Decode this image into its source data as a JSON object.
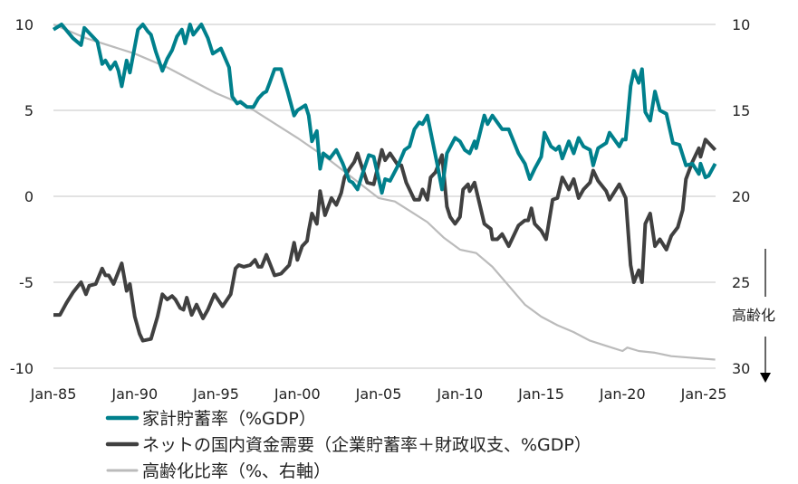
{
  "chart_data": {
    "type": "line",
    "title": "",
    "x_ticks": [
      "Jan-85",
      "Jan-90",
      "Jan-95",
      "Jan-00",
      "Jan-05",
      "Jan-10",
      "Jan-15",
      "Jan-20",
      "Jan-25"
    ],
    "x_range": [
      1985,
      2025.7
    ],
    "y_left": {
      "ticks": [
        "10",
        "5",
        "0",
        "-5",
        "-10"
      ],
      "range": [
        -10,
        10
      ],
      "negative_tick_color": "#FF0000"
    },
    "y_right": {
      "ticks": [
        "10",
        "15",
        "20",
        "25",
        "30"
      ],
      "range": [
        10,
        30
      ],
      "inverted": true,
      "annotation": "高齢化",
      "annotation_arrow": "down"
    },
    "grid": "horizontal",
    "legend_placement": "bottom",
    "series": [
      {
        "name": "家計貯蓄率（%GDP）",
        "axis": "left",
        "color": "#00808C",
        "points": [
          [
            1985.0,
            9.7
          ],
          [
            1985.5,
            10.0
          ],
          [
            1986.2,
            9.2
          ],
          [
            1986.7,
            8.8
          ],
          [
            1986.9,
            9.8
          ],
          [
            1987.7,
            9.0
          ],
          [
            1988.0,
            7.7
          ],
          [
            1988.2,
            7.9
          ],
          [
            1988.5,
            7.4
          ],
          [
            1988.8,
            7.8
          ],
          [
            1989.0,
            7.3
          ],
          [
            1989.2,
            6.4
          ],
          [
            1989.5,
            7.9
          ],
          [
            1989.7,
            7.2
          ],
          [
            1990.2,
            9.7
          ],
          [
            1990.5,
            10.0
          ],
          [
            1990.8,
            9.6
          ],
          [
            1991.0,
            9.4
          ],
          [
            1991.3,
            8.4
          ],
          [
            1991.7,
            7.3
          ],
          [
            1992.0,
            8.0
          ],
          [
            1992.3,
            8.5
          ],
          [
            1992.6,
            9.3
          ],
          [
            1992.9,
            9.7
          ],
          [
            1993.1,
            8.9
          ],
          [
            1993.4,
            10.0
          ],
          [
            1993.6,
            9.4
          ],
          [
            1994.1,
            10.0
          ],
          [
            1994.5,
            9.2
          ],
          [
            1994.8,
            8.3
          ],
          [
            1995.3,
            8.6
          ],
          [
            1995.8,
            7.5
          ],
          [
            1996.0,
            5.8
          ],
          [
            1996.3,
            5.4
          ],
          [
            1996.5,
            5.5
          ],
          [
            1996.9,
            5.2
          ],
          [
            1997.3,
            5.2
          ],
          [
            1997.6,
            5.7
          ],
          [
            1997.9,
            6.0
          ],
          [
            1998.1,
            6.1
          ],
          [
            1998.3,
            6.6
          ],
          [
            1998.6,
            7.4
          ],
          [
            1999.0,
            7.4
          ],
          [
            1999.4,
            6.1
          ],
          [
            1999.8,
            4.7
          ],
          [
            2000.0,
            5.0
          ],
          [
            2000.5,
            5.3
          ],
          [
            2000.7,
            4.7
          ],
          [
            2000.9,
            3.2
          ],
          [
            2001.2,
            3.8
          ],
          [
            2001.4,
            1.6
          ],
          [
            2001.6,
            2.5
          ],
          [
            2002.0,
            2.2
          ],
          [
            2002.4,
            2.7
          ],
          [
            2002.8,
            1.9
          ],
          [
            2003.2,
            0.9
          ],
          [
            2003.4,
            0.8
          ],
          [
            2003.7,
            0.4
          ],
          [
            2004.0,
            1.3
          ],
          [
            2004.4,
            2.4
          ],
          [
            2004.7,
            2.3
          ],
          [
            2005.2,
            0.2
          ],
          [
            2005.4,
            1.0
          ],
          [
            2005.7,
            0.9
          ],
          [
            2006.2,
            1.8
          ],
          [
            2006.6,
            2.7
          ],
          [
            2006.9,
            2.9
          ],
          [
            2007.2,
            3.9
          ],
          [
            2007.5,
            4.3
          ],
          [
            2007.7,
            4.2
          ],
          [
            2008.0,
            4.7
          ],
          [
            2008.3,
            3.3
          ],
          [
            2008.6,
            1.9
          ],
          [
            2008.9,
            0.4
          ],
          [
            2009.2,
            2.5
          ],
          [
            2009.7,
            3.4
          ],
          [
            2010.0,
            3.2
          ],
          [
            2010.3,
            2.7
          ],
          [
            2010.6,
            2.5
          ],
          [
            2010.9,
            3.2
          ],
          [
            2011.0,
            2.8
          ],
          [
            2011.5,
            4.7
          ],
          [
            2011.7,
            4.2
          ],
          [
            2012.0,
            4.7
          ],
          [
            2012.3,
            4.3
          ],
          [
            2012.6,
            3.9
          ],
          [
            2013.0,
            3.9
          ],
          [
            2013.6,
            2.5
          ],
          [
            2014.0,
            1.9
          ],
          [
            2014.3,
            1.0
          ],
          [
            2014.6,
            1.6
          ],
          [
            2015.0,
            2.3
          ],
          [
            2015.2,
            3.7
          ],
          [
            2015.6,
            2.9
          ],
          [
            2015.9,
            2.7
          ],
          [
            2016.1,
            2.9
          ],
          [
            2016.3,
            2.2
          ],
          [
            2016.7,
            3.2
          ],
          [
            2017.0,
            2.5
          ],
          [
            2017.3,
            3.4
          ],
          [
            2017.6,
            2.9
          ],
          [
            2018.0,
            2.7
          ],
          [
            2018.2,
            1.8
          ],
          [
            2018.5,
            2.8
          ],
          [
            2019.0,
            3.1
          ],
          [
            2019.2,
            3.7
          ],
          [
            2019.8,
            2.9
          ],
          [
            2020.0,
            3.3
          ],
          [
            2020.2,
            3.3
          ],
          [
            2020.5,
            6.4
          ],
          [
            2020.7,
            7.3
          ],
          [
            2021.0,
            6.6
          ],
          [
            2021.2,
            7.4
          ],
          [
            2021.4,
            4.9
          ],
          [
            2021.7,
            4.4
          ],
          [
            2022.0,
            6.1
          ],
          [
            2022.3,
            5.0
          ],
          [
            2022.7,
            4.8
          ],
          [
            2023.1,
            3.1
          ],
          [
            2023.5,
            3.0
          ],
          [
            2023.9,
            1.8
          ],
          [
            2024.3,
            1.9
          ],
          [
            2024.7,
            1.3
          ],
          [
            2024.8,
            1.9
          ],
          [
            2025.1,
            1.1
          ],
          [
            2025.3,
            1.2
          ],
          [
            2025.7,
            1.9
          ]
        ]
      },
      {
        "name": "ネットの国内資金需要（企業貯蓄率＋財政収支、%GDP）",
        "axis": "left",
        "color": "#404040",
        "points": [
          [
            1985.0,
            -6.9
          ],
          [
            1985.4,
            -6.9
          ],
          [
            1985.8,
            -6.2
          ],
          [
            1986.2,
            -5.6
          ],
          [
            1986.7,
            -5.0
          ],
          [
            1987.0,
            -5.7
          ],
          [
            1987.2,
            -5.2
          ],
          [
            1987.6,
            -5.1
          ],
          [
            1988.0,
            -4.2
          ],
          [
            1988.2,
            -4.6
          ],
          [
            1988.4,
            -4.6
          ],
          [
            1988.7,
            -5.1
          ],
          [
            1989.2,
            -3.9
          ],
          [
            1989.5,
            -5.5
          ],
          [
            1989.7,
            -5.1
          ],
          [
            1990.0,
            -7.0
          ],
          [
            1990.3,
            -8.0
          ],
          [
            1990.5,
            -8.4
          ],
          [
            1991.0,
            -8.3
          ],
          [
            1991.4,
            -7.0
          ],
          [
            1991.7,
            -5.7
          ],
          [
            1992.0,
            -6.0
          ],
          [
            1992.3,
            -5.8
          ],
          [
            1992.5,
            -6.0
          ],
          [
            1992.8,
            -6.5
          ],
          [
            1993.0,
            -6.6
          ],
          [
            1993.2,
            -5.9
          ],
          [
            1993.5,
            -6.9
          ],
          [
            1993.8,
            -6.3
          ],
          [
            1994.2,
            -7.1
          ],
          [
            1994.5,
            -6.6
          ],
          [
            1994.9,
            -5.7
          ],
          [
            1995.4,
            -6.4
          ],
          [
            1995.9,
            -5.7
          ],
          [
            1996.2,
            -4.2
          ],
          [
            1996.4,
            -4.0
          ],
          [
            1996.7,
            -4.1
          ],
          [
            1997.1,
            -4.0
          ],
          [
            1997.4,
            -3.7
          ],
          [
            1997.6,
            -4.1
          ],
          [
            1997.8,
            -4.1
          ],
          [
            1998.1,
            -3.4
          ],
          [
            1998.6,
            -4.6
          ],
          [
            1999.0,
            -4.5
          ],
          [
            1999.5,
            -4.0
          ],
          [
            1999.8,
            -2.7
          ],
          [
            2000.0,
            -3.7
          ],
          [
            2000.3,
            -2.9
          ],
          [
            2000.6,
            -2.6
          ],
          [
            2000.7,
            -2.0
          ],
          [
            2000.9,
            -1.0
          ],
          [
            2001.2,
            -1.6
          ],
          [
            2001.4,
            0.3
          ],
          [
            2001.7,
            -1.1
          ],
          [
            2002.1,
            -0.1
          ],
          [
            2002.4,
            -0.5
          ],
          [
            2002.7,
            0.2
          ],
          [
            2002.9,
            1.1
          ],
          [
            2003.2,
            1.6
          ],
          [
            2003.5,
            2.0
          ],
          [
            2003.7,
            2.5
          ],
          [
            2003.9,
            1.9
          ],
          [
            2004.3,
            0.8
          ],
          [
            2004.7,
            0.7
          ],
          [
            2005.2,
            2.7
          ],
          [
            2005.4,
            2.1
          ],
          [
            2005.7,
            2.5
          ],
          [
            2006.2,
            1.8
          ],
          [
            2006.4,
            1.8
          ],
          [
            2006.7,
            0.8
          ],
          [
            2006.9,
            0.4
          ],
          [
            2007.2,
            -0.2
          ],
          [
            2007.5,
            -0.2
          ],
          [
            2007.7,
            0.4
          ],
          [
            2008.0,
            -0.2
          ],
          [
            2008.2,
            1.1
          ],
          [
            2008.5,
            1.4
          ],
          [
            2008.9,
            2.4
          ],
          [
            2009.2,
            -0.6
          ],
          [
            2009.4,
            -1.2
          ],
          [
            2009.7,
            -1.6
          ],
          [
            2010.0,
            -1.2
          ],
          [
            2010.2,
            0.4
          ],
          [
            2010.5,
            0.7
          ],
          [
            2010.6,
            0.3
          ],
          [
            2010.9,
            0.8
          ],
          [
            2011.5,
            -1.6
          ],
          [
            2011.9,
            -1.9
          ],
          [
            2012.0,
            -2.5
          ],
          [
            2012.3,
            -2.5
          ],
          [
            2012.6,
            -2.2
          ],
          [
            2013.0,
            -2.9
          ],
          [
            2013.6,
            -1.7
          ],
          [
            2014.0,
            -1.4
          ],
          [
            2014.2,
            -1.4
          ],
          [
            2014.4,
            -0.7
          ],
          [
            2014.6,
            -1.6
          ],
          [
            2015.0,
            -2.0
          ],
          [
            2015.3,
            -2.5
          ],
          [
            2015.7,
            -0.2
          ],
          [
            2016.0,
            -0.1
          ],
          [
            2016.3,
            1.1
          ],
          [
            2016.7,
            0.4
          ],
          [
            2017.0,
            1.0
          ],
          [
            2017.3,
            -0.1
          ],
          [
            2017.6,
            0.4
          ],
          [
            2018.0,
            0.8
          ],
          [
            2018.2,
            1.5
          ],
          [
            2018.5,
            0.9
          ],
          [
            2019.0,
            0.3
          ],
          [
            2019.2,
            -0.2
          ],
          [
            2019.8,
            0.7
          ],
          [
            2020.2,
            -0.1
          ],
          [
            2020.5,
            -4.0
          ],
          [
            2020.7,
            -5.0
          ],
          [
            2021.0,
            -4.3
          ],
          [
            2021.2,
            -5.0
          ],
          [
            2021.4,
            -1.6
          ],
          [
            2021.7,
            -1.0
          ],
          [
            2022.0,
            -2.9
          ],
          [
            2022.3,
            -2.5
          ],
          [
            2022.7,
            -3.1
          ],
          [
            2023.0,
            -2.3
          ],
          [
            2023.4,
            -1.8
          ],
          [
            2023.7,
            -0.8
          ],
          [
            2023.9,
            1.0
          ],
          [
            2024.3,
            2.0
          ],
          [
            2024.7,
            2.8
          ],
          [
            2024.8,
            2.3
          ],
          [
            2025.1,
            3.3
          ],
          [
            2025.7,
            2.7
          ]
        ]
      },
      {
        "name": "高齢化比率（%、右軸）",
        "axis": "right",
        "color": "#BBBBBB",
        "points": [
          [
            1985.0,
            10.0
          ],
          [
            1987.0,
            10.8
          ],
          [
            1990.0,
            11.7
          ],
          [
            1992.0,
            12.5
          ],
          [
            1995.0,
            14.0
          ],
          [
            1997.0,
            14.8
          ],
          [
            2000.0,
            16.6
          ],
          [
            2002.0,
            17.9
          ],
          [
            2005.0,
            20.1
          ],
          [
            2006.0,
            20.3
          ],
          [
            2007.0,
            20.9
          ],
          [
            2008.0,
            21.5
          ],
          [
            2009.0,
            22.4
          ],
          [
            2010.0,
            23.1
          ],
          [
            2011.0,
            23.3
          ],
          [
            2012.0,
            24.1
          ],
          [
            2013.0,
            25.2
          ],
          [
            2014.0,
            26.3
          ],
          [
            2015.0,
            27.0
          ],
          [
            2016.0,
            27.5
          ],
          [
            2017.0,
            27.9
          ],
          [
            2018.0,
            28.4
          ],
          [
            2019.0,
            28.7
          ],
          [
            2020.0,
            29.0
          ],
          [
            2020.3,
            28.8
          ],
          [
            2021.0,
            29.0
          ],
          [
            2022.0,
            29.1
          ],
          [
            2023.0,
            29.3
          ],
          [
            2025.7,
            29.5
          ]
        ]
      }
    ]
  }
}
